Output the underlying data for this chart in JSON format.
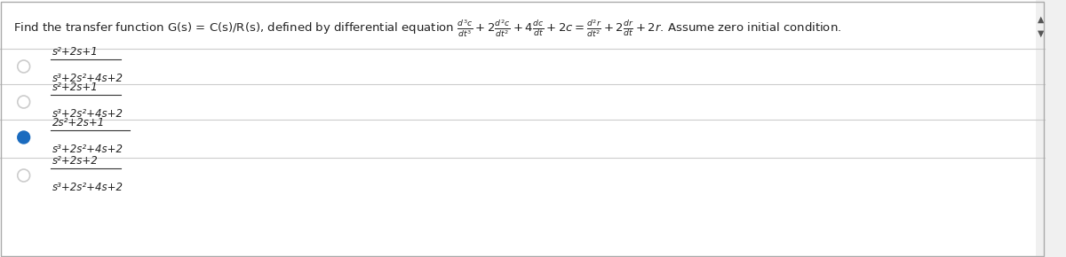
{
  "bg_color": "#f0f0f0",
  "inner_bg": "#ffffff",
  "question": "Find the transfer function G(s) = C(s)/R(s), defined by differential equation $\\frac{d^3c}{dt^3} + 2\\frac{d^2c}{dt^2} + 4\\frac{dc}{dt} + 2c = \\frac{d^2r}{dt^2} + 2\\frac{dr}{dt} + 2r$. Assume zero initial condition.",
  "options": [
    {
      "num": "$s^2+2s+1$",
      "den": "$s^3+2s^2+4s+2$",
      "selected": false
    },
    {
      "num": "$s^2+2s+1$",
      "den": "$s^3+2s^2+4s+2$",
      "selected": false,
      "italic_den": true
    },
    {
      "num": "$2s^2+2s+1$",
      "den": "$s^3+2s^2+4s+2$",
      "selected": true
    },
    {
      "num": "$s^2+2s+2$",
      "den": "$s^3+2s^2+4s+2$",
      "selected": false
    }
  ],
  "circle_color_unsel": "#cccccc",
  "circle_color_sel": "#1a6bbf",
  "option1_num": "s²+2s+1",
  "option1_den": "s³+2s²+4s+2",
  "option2_num": "s²+2s+1",
  "option2_den": "s³+2s²+4s+2",
  "option3_num": "2s²+2s+1",
  "option3_den": "s³+2s²+4s+2",
  "option4_num": "s²+2s+2",
  "option4_den": "s³+2s²+4s+2",
  "selected_index": 2,
  "divider_color": "#cccccc",
  "scroll_color": "#aaaaaa"
}
